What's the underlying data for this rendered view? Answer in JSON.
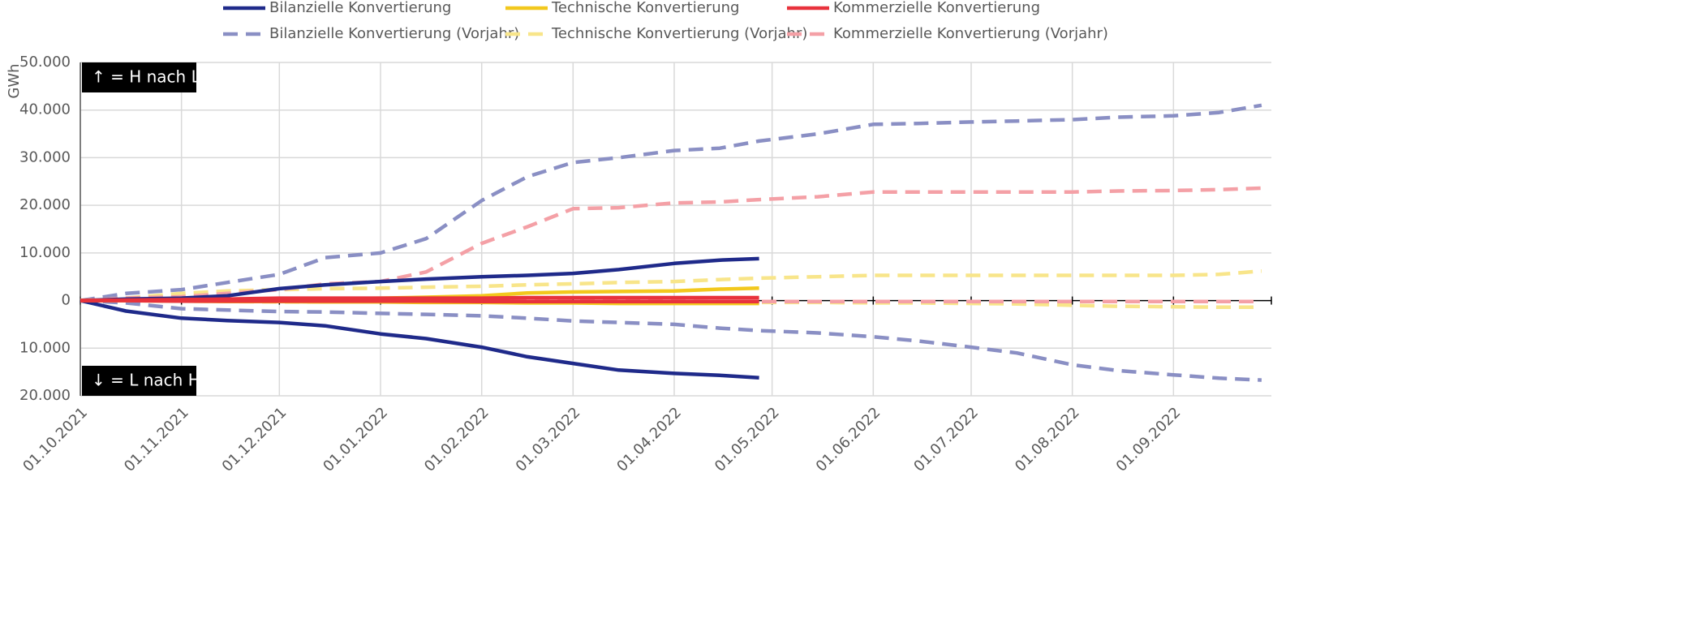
{
  "chart_data": {
    "type": "line",
    "y_label": "GWh",
    "annotations": [
      "↑ = H nach L",
      "↓ = L nach H"
    ],
    "x": [
      "01.10.2021",
      "15.10.2021",
      "01.11.2021",
      "15.11.2021",
      "01.12.2021",
      "15.12.2021",
      "01.01.2022",
      "15.01.2022",
      "01.02.2022",
      "15.02.2022",
      "01.03.2022",
      "15.03.2022",
      "01.04.2022",
      "15.04.2022",
      "27.04.2022",
      "15.05.2022",
      "01.06.2022",
      "15.06.2022",
      "01.07.2022",
      "15.07.2022",
      "01.08.2022",
      "15.08.2022",
      "01.09.2022",
      "15.09.2022",
      "28.09.2022"
    ],
    "xlim": [
      "01.10.2021",
      "01.10.2022"
    ],
    "xticks": [
      "01.10.2021",
      "01.11.2021",
      "01.12.2021",
      "01.01.2022",
      "01.02.2022",
      "01.03.2022",
      "01.04.2022",
      "01.05.2022",
      "01.06.2022",
      "01.07.2022",
      "01.08.2022",
      "01.09.2022"
    ],
    "ylim": [
      -20000,
      50000
    ],
    "yticks": [
      {
        "value": -20000,
        "label": "20.000"
      },
      {
        "value": -10000,
        "label": "10.000"
      },
      0,
      {
        "value": 10000,
        "label": "10.000"
      },
      {
        "value": 20000,
        "label": "20.000"
      },
      {
        "value": 30000,
        "label": "30.000"
      },
      {
        "value": 40000,
        "label": "40.000"
      },
      {
        "value": 50000,
        "label": "50.000"
      }
    ],
    "grid": true,
    "series": [
      {
        "name": "Bilanzielle Konvertierung",
        "color": "#1f2a8a",
        "dashed": false,
        "values": [
          0,
          300,
          500,
          1000,
          2500,
          3300,
          4000,
          4500,
          5000,
          5300,
          5700,
          6500,
          7800,
          8500,
          8800,
          null,
          null,
          null,
          null,
          null,
          null,
          null,
          null,
          null,
          null
        ],
        "lower": [
          0,
          -2200,
          -3700,
          -4200,
          -4600,
          -5300,
          -7000,
          -8000,
          -9800,
          -11800,
          -13200,
          -14600,
          -15300,
          -15700,
          -16200,
          null,
          null,
          null,
          null,
          null,
          null,
          null,
          null,
          null,
          null
        ]
      },
      {
        "name": "Technische Konvertierung",
        "color": "#f2c81d",
        "dashed": false,
        "values": [
          0,
          0,
          100,
          200,
          300,
          400,
          500,
          700,
          1000,
          1600,
          1800,
          1900,
          2000,
          2400,
          2600,
          null,
          null,
          null,
          null,
          null,
          null,
          null,
          null,
          null,
          null
        ],
        "lower": [
          0,
          0,
          -100,
          -200,
          -200,
          -300,
          -300,
          -400,
          -400,
          -500,
          -500,
          -600,
          -600,
          -600,
          -600,
          null,
          null,
          null,
          null,
          null,
          null,
          null,
          null,
          null,
          null
        ]
      },
      {
        "name": "Kommerzielle Konvertierung",
        "color": "#e8323c",
        "dashed": false,
        "values": [
          0,
          100,
          200,
          300,
          500,
          500,
          500,
          500,
          500,
          600,
          600,
          600,
          600,
          600,
          600,
          null,
          null,
          null,
          null,
          null,
          null,
          null,
          null,
          null,
          null
        ],
        "lower": [
          0,
          0,
          -100,
          -100,
          -100,
          -100,
          -100,
          -100,
          -200,
          -200,
          -200,
          -200,
          -200,
          -200,
          -200,
          null,
          null,
          null,
          null,
          null,
          null,
          null,
          null,
          null,
          null
        ]
      },
      {
        "name": "Bilanzielle Konvertierung (Vorjahr)",
        "color": "#8a8fc4",
        "dashed": true,
        "values": [
          0,
          1500,
          2300,
          3800,
          5500,
          9000,
          10000,
          13000,
          21000,
          26000,
          29000,
          30000,
          31500,
          32000,
          33500,
          35000,
          37000,
          37200,
          37500,
          37700,
          38000,
          38500,
          38800,
          39500,
          41000
        ],
        "lower": [
          0,
          -500,
          -1700,
          -2000,
          -2300,
          -2400,
          -2700,
          -2900,
          -3200,
          -3700,
          -4300,
          -4600,
          -5000,
          -5800,
          -6300,
          -6800,
          -7600,
          -8500,
          -9800,
          -11000,
          -13500,
          -14700,
          -15600,
          -16300,
          -16700
        ]
      },
      {
        "name": "Technische Konvertierung (Vorjahr)",
        "color": "#f8e58a",
        "dashed": true,
        "values": [
          0,
          500,
          1500,
          2000,
          2300,
          2500,
          2600,
          2800,
          3000,
          3300,
          3500,
          3800,
          4000,
          4400,
          4700,
          5000,
          5300,
          5300,
          5300,
          5300,
          5300,
          5300,
          5300,
          5500,
          6200
        ],
        "lower": [
          0,
          0,
          -100,
          -200,
          -300,
          -300,
          -300,
          -300,
          -300,
          -300,
          -400,
          -400,
          -400,
          -400,
          -400,
          -400,
          -500,
          -500,
          -600,
          -700,
          -1000,
          -1200,
          -1300,
          -1400,
          -1400
        ]
      },
      {
        "name": "Kommerzielle Konvertierung (Vorjahr)",
        "color": "#f4a0a6",
        "dashed": true,
        "values": [
          0,
          500,
          800,
          1500,
          2300,
          3500,
          4000,
          6000,
          12000,
          15500,
          19300,
          19500,
          20500,
          20700,
          21200,
          21800,
          22800,
          22800,
          22800,
          22800,
          22800,
          23000,
          23100,
          23300,
          23600
        ],
        "lower": [
          0,
          0,
          -100,
          -100,
          -100,
          -100,
          -100,
          -100,
          -100,
          -100,
          -100,
          -100,
          -100,
          -200,
          -200,
          -200,
          -200,
          -200,
          -200,
          -200,
          -200,
          -200,
          -200,
          -200,
          -200
        ]
      }
    ]
  }
}
